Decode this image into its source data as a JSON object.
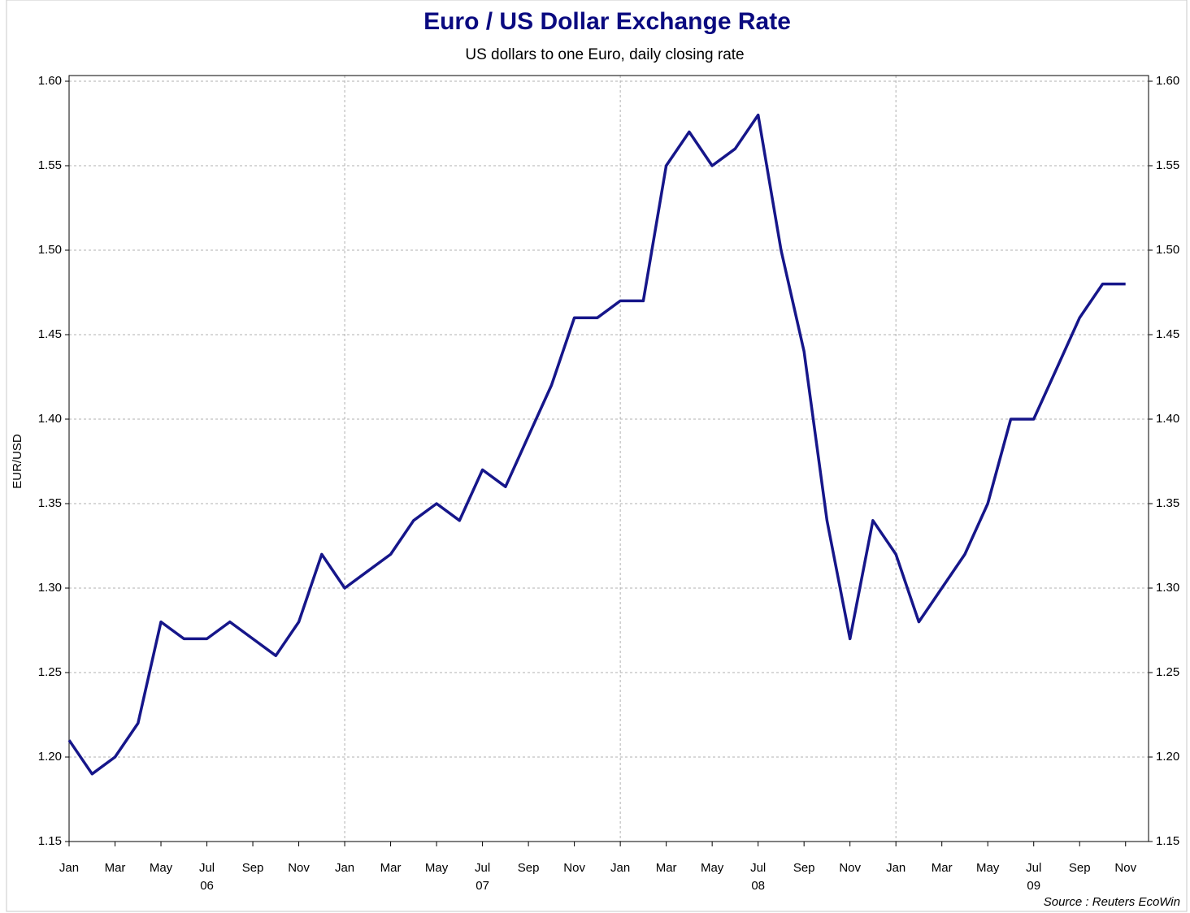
{
  "chart_data": {
    "type": "line",
    "title": "Euro / US Dollar Exchange Rate",
    "subtitle": "US dollars to one Euro, daily closing rate",
    "y_label": "EUR/USD",
    "source": "Source : Reuters EcoWin",
    "x": [
      "2006-01",
      "2006-02",
      "2006-03",
      "2006-04",
      "2006-05",
      "2006-06",
      "2006-07",
      "2006-08",
      "2006-09",
      "2006-10",
      "2006-11",
      "2006-12",
      "2007-01",
      "2007-02",
      "2007-03",
      "2007-04",
      "2007-05",
      "2007-06",
      "2007-07",
      "2007-08",
      "2007-09",
      "2007-10",
      "2007-11",
      "2007-12",
      "2008-01",
      "2008-02",
      "2008-03",
      "2008-04",
      "2008-05",
      "2008-06",
      "2008-07",
      "2008-08",
      "2008-09",
      "2008-10",
      "2008-11",
      "2008-12",
      "2009-01",
      "2009-02",
      "2009-03",
      "2009-04",
      "2009-05",
      "2009-06",
      "2009-07",
      "2009-08",
      "2009-09",
      "2009-10",
      "2009-11"
    ],
    "series": [
      {
        "name": "EUR/USD",
        "color": "#16168a",
        "values": [
          1.21,
          1.19,
          1.2,
          1.22,
          1.28,
          1.27,
          1.27,
          1.28,
          1.27,
          1.26,
          1.28,
          1.32,
          1.3,
          1.31,
          1.32,
          1.34,
          1.35,
          1.34,
          1.37,
          1.36,
          1.39,
          1.42,
          1.46,
          1.46,
          1.47,
          1.47,
          1.55,
          1.57,
          1.55,
          1.56,
          1.58,
          1.5,
          1.44,
          1.34,
          1.27,
          1.34,
          1.32,
          1.28,
          1.3,
          1.32,
          1.35,
          1.4,
          1.4,
          1.43,
          1.46,
          1.48,
          1.48
        ]
      }
    ],
    "xlim": [
      "2006-01",
      "2009-12"
    ],
    "xticks": [
      {
        "value": "2006-01",
        "label": "Jan"
      },
      {
        "value": "2006-03",
        "label": "Mar"
      },
      {
        "value": "2006-05",
        "label": "May"
      },
      {
        "value": "2006-07",
        "label": "Jul"
      },
      {
        "value": "2006-09",
        "label": "Sep"
      },
      {
        "value": "2006-11",
        "label": "Nov"
      },
      {
        "value": "2007-01",
        "label": "Jan"
      },
      {
        "value": "2007-03",
        "label": "Mar"
      },
      {
        "value": "2007-05",
        "label": "May"
      },
      {
        "value": "2007-07",
        "label": "Jul"
      },
      {
        "value": "2007-09",
        "label": "Sep"
      },
      {
        "value": "2007-11",
        "label": "Nov"
      },
      {
        "value": "2008-01",
        "label": "Jan"
      },
      {
        "value": "2008-03",
        "label": "Mar"
      },
      {
        "value": "2008-05",
        "label": "May"
      },
      {
        "value": "2008-07",
        "label": "Jul"
      },
      {
        "value": "2008-09",
        "label": "Sep"
      },
      {
        "value": "2008-11",
        "label": "Nov"
      },
      {
        "value": "2009-01",
        "label": "Jan"
      },
      {
        "value": "2009-03",
        "label": "Mar"
      },
      {
        "value": "2009-05",
        "label": "May"
      },
      {
        "value": "2009-07",
        "label": "Jul"
      },
      {
        "value": "2009-09",
        "label": "Sep"
      },
      {
        "value": "2009-11",
        "label": "Nov"
      }
    ],
    "year_labels": [
      {
        "value": "2006-07",
        "label": "06"
      },
      {
        "value": "2007-07",
        "label": "07"
      },
      {
        "value": "2008-07",
        "label": "08"
      },
      {
        "value": "2009-07",
        "label": "09"
      }
    ],
    "x_grid": [
      "2007-01",
      "2008-01",
      "2009-01"
    ],
    "ylim": [
      1.15,
      1.6
    ],
    "yticks": [
      1.15,
      {
        "value": 1.2,
        "label": "1.20"
      },
      1.25,
      {
        "value": 1.3,
        "label": "1.30"
      },
      1.35,
      {
        "value": 1.4,
        "label": "1.40"
      },
      1.45,
      {
        "value": 1.5,
        "label": "1.50"
      },
      1.55,
      {
        "value": 1.6,
        "label": "1.60"
      }
    ],
    "grid": true
  }
}
